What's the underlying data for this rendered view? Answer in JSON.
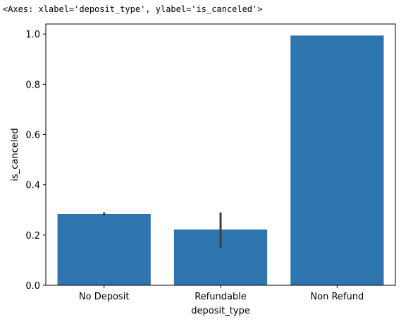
{
  "header": {
    "repr": "<Axes: xlabel='deposit_type', ylabel='is_canceled'>"
  },
  "colors": {
    "bar": "#2e75b0",
    "error_bar": "#3d3d3d",
    "axis": "#000000"
  },
  "chart_data": {
    "type": "bar",
    "title": "",
    "xlabel": "deposit_type",
    "ylabel": "is_canceled",
    "categories": [
      "No Deposit",
      "Refundable",
      "Non Refund"
    ],
    "values": [
      0.284,
      0.222,
      0.994
    ],
    "error_low": [
      0.277,
      0.15,
      0.994
    ],
    "error_high": [
      0.29,
      0.29,
      0.994
    ],
    "ylim": [
      0,
      1.04
    ],
    "yticks": [
      0.0,
      0.2,
      0.4,
      0.6,
      0.8,
      1.0
    ],
    "ytick_labels": [
      "0.0",
      "0.2",
      "0.4",
      "0.6",
      "0.8",
      "1.0"
    ],
    "grid": false,
    "legend": "none"
  }
}
